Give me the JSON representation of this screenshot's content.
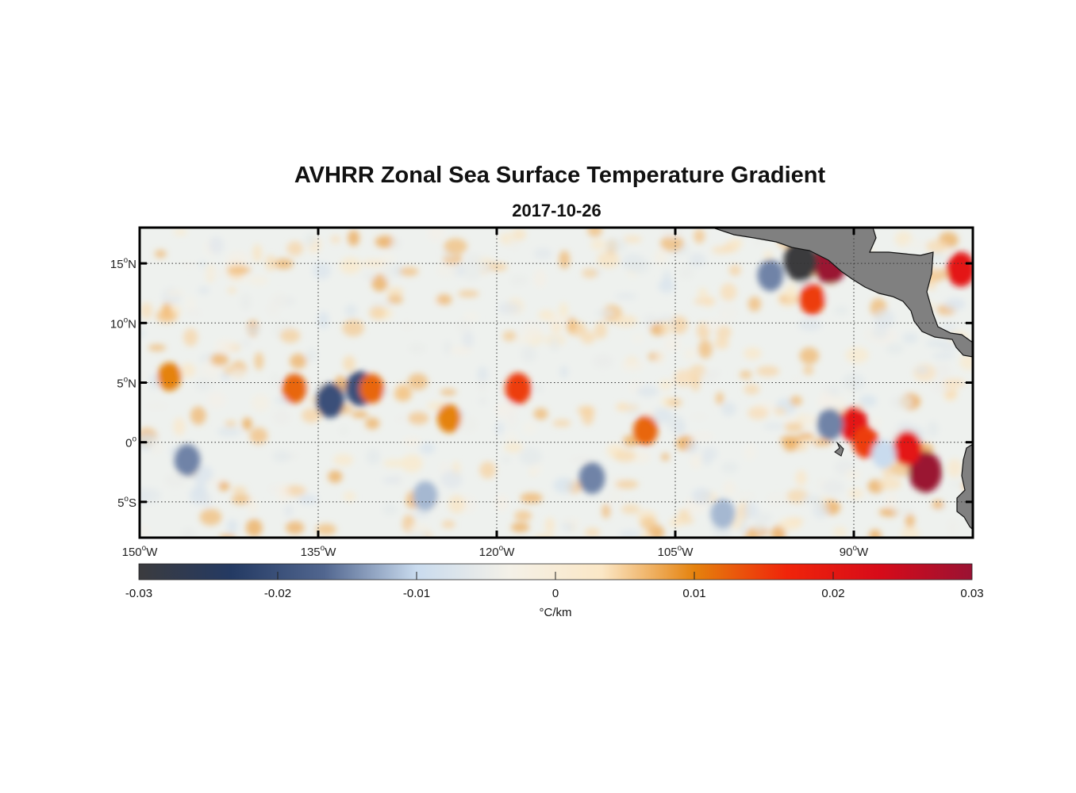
{
  "title": "AVHRR Zonal Sea Surface Temperature Gradient",
  "subtitle": "2017-10-26",
  "map": {
    "lon_range": [
      -150,
      -80
    ],
    "lat_range": [
      -8,
      18
    ],
    "lon_ticks": [
      {
        "value": -150,
        "num": "150",
        "hemi": "W"
      },
      {
        "value": -135,
        "num": "135",
        "hemi": "W"
      },
      {
        "value": -120,
        "num": "120",
        "hemi": "W"
      },
      {
        "value": -105,
        "num": "105",
        "hemi": "W"
      },
      {
        "value": -90,
        "num": "90",
        "hemi": "W"
      }
    ],
    "lat_ticks": [
      {
        "value": 15,
        "num": "15",
        "hemi": "N"
      },
      {
        "value": 10,
        "num": "10",
        "hemi": "N"
      },
      {
        "value": 5,
        "num": "5",
        "hemi": "N"
      },
      {
        "value": 0,
        "num": "0",
        "hemi": ""
      },
      {
        "value": -5,
        "num": "5",
        "hemi": "S"
      }
    ],
    "grid": "dotted",
    "land_color": "#808080"
  },
  "colorbar": {
    "min": -0.03,
    "max": 0.03,
    "tick_labels": [
      "-0.03",
      "-0.02",
      "-0.01",
      "0",
      "0.01",
      "0.02",
      "0.03"
    ],
    "unit": "°C/km",
    "colors": [
      "#3b3b3e",
      "#243a63",
      "#51668f",
      "#c9dbee",
      "#f4f1e8",
      "#fbe7c6",
      "#e5820d",
      "#f0240a",
      "#d70b19",
      "#9a1233"
    ]
  },
  "chart_data": {
    "type": "heatmap",
    "title": "AVHRR Zonal Sea Surface Temperature Gradient",
    "subtitle": "2017-10-26",
    "variable_unit": "°C/km",
    "value_range": [
      -0.03,
      0.03
    ],
    "features": [
      {
        "lon": -92.0,
        "lat": 15.0,
        "value": 0.03
      },
      {
        "lon": -94.5,
        "lat": 15.2,
        "value": -0.03
      },
      {
        "lon": -93.5,
        "lat": 12.0,
        "value": 0.015
      },
      {
        "lon": -84.0,
        "lat": -2.5,
        "value": 0.03
      },
      {
        "lon": -85.5,
        "lat": -0.5,
        "value": 0.02
      },
      {
        "lon": -90.0,
        "lat": 1.5,
        "value": 0.02
      },
      {
        "lon": -89.0,
        "lat": 0.0,
        "value": 0.015
      },
      {
        "lon": -131.5,
        "lat": 4.5,
        "value": -0.02
      },
      {
        "lon": -134.0,
        "lat": 3.5,
        "value": -0.02
      },
      {
        "lon": -130.5,
        "lat": 4.5,
        "value": 0.012
      },
      {
        "lon": -118.2,
        "lat": 4.5,
        "value": 0.015
      },
      {
        "lon": -146.0,
        "lat": -1.5,
        "value": -0.015
      },
      {
        "lon": -112.0,
        "lat": -3.0,
        "value": -0.015
      },
      {
        "lon": -124.0,
        "lat": 2.0,
        "value": 0.01
      },
      {
        "lon": -147.5,
        "lat": 5.5,
        "value": 0.01
      },
      {
        "lon": -137.0,
        "lat": 4.5,
        "value": 0.012
      },
      {
        "lon": -107.5,
        "lat": 1.0,
        "value": 0.012
      },
      {
        "lon": -81.0,
        "lat": 14.5,
        "value": 0.02
      },
      {
        "lon": -126.0,
        "lat": -4.5,
        "value": -0.012
      },
      {
        "lon": -97.0,
        "lat": 14.0,
        "value": -0.015
      },
      {
        "lon": -92.0,
        "lat": 1.5,
        "value": -0.015
      },
      {
        "lon": -87.5,
        "lat": -1.0,
        "value": -0.01
      },
      {
        "lon": -101.0,
        "lat": -6.0,
        "value": -0.012
      }
    ]
  }
}
